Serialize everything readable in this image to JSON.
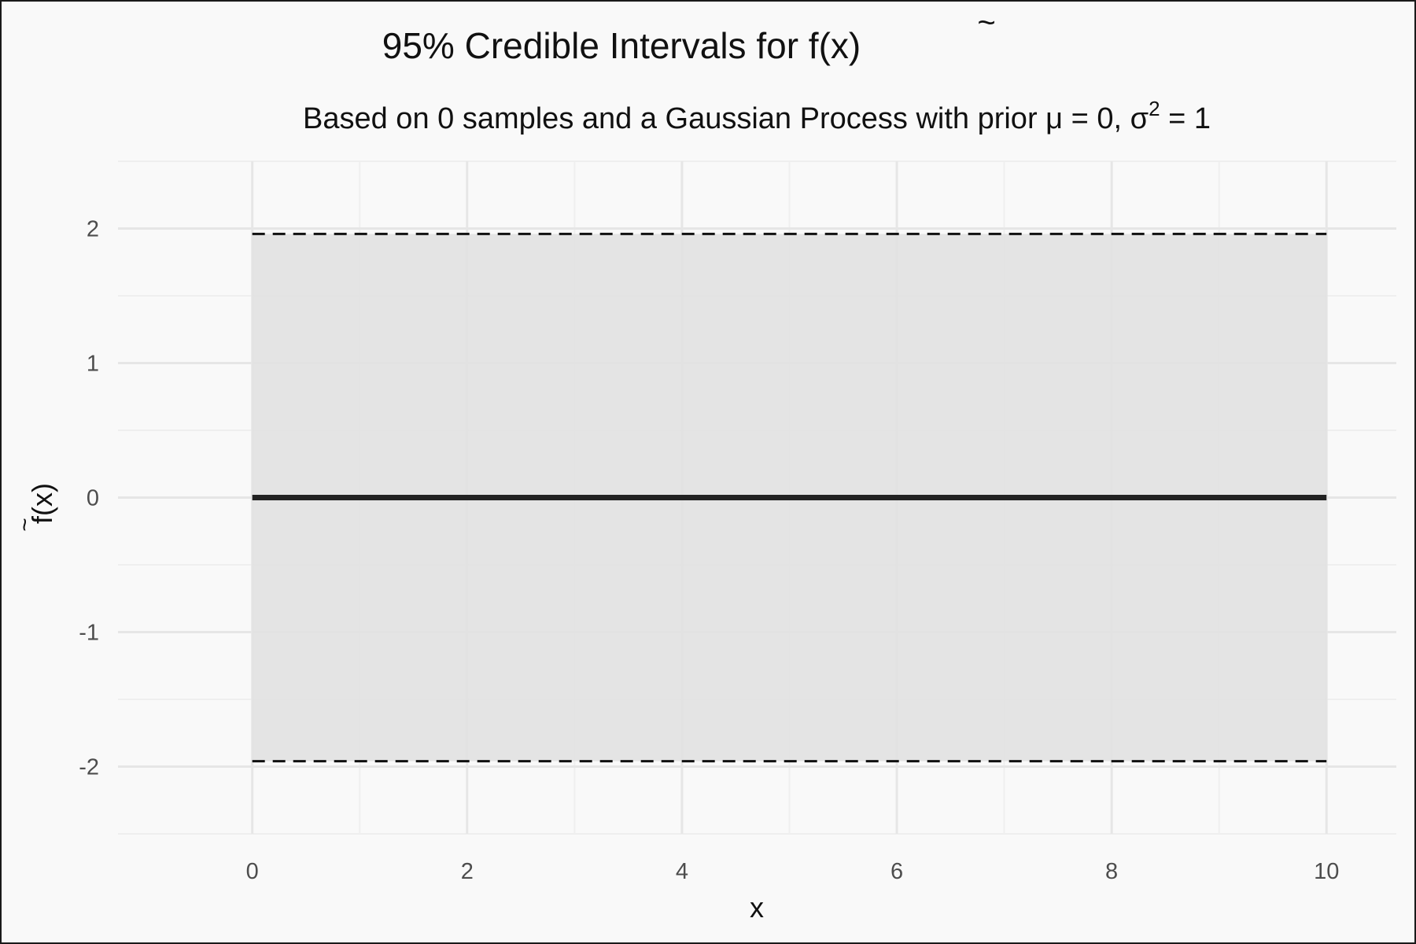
{
  "chart_data": {
    "type": "line",
    "title": "95% Credible Intervals for f̃(x)",
    "title_parts": {
      "prefix": "95% Credible Intervals for ",
      "fn": "f",
      "suffix": "(x)"
    },
    "subtitle": "Based on 0 samples and a Gaussian Process with prior μ = 0, σ² = 1",
    "subtitle_parts": {
      "main": "Based on 0 samples and a Gaussian Process with prior μ = 0, σ",
      "sup": "2",
      "tail": " = 1"
    },
    "xlabel": "x",
    "ylabel": "f̃(x)",
    "ylabel_parts": {
      "fn": "f",
      "suffix": "(x)"
    },
    "xlim": [
      -1.25,
      10.65
    ],
    "ylim": [
      -2.5,
      2.5
    ],
    "x_ticks": [
      0,
      2,
      4,
      6,
      8,
      10
    ],
    "x_tick_labels": [
      "0",
      "2",
      "4",
      "6",
      "8",
      "10"
    ],
    "y_ticks": [
      -2,
      -1,
      0,
      1,
      2
    ],
    "y_tick_labels": [
      "-2",
      "-1",
      "0",
      "1",
      "2"
    ],
    "grid": true,
    "series": [
      {
        "kind": "mean",
        "x": [
          0,
          10
        ],
        "y": [
          0,
          0
        ]
      },
      {
        "kind": "upper_bound",
        "x": [
          0,
          10
        ],
        "y": [
          1.96,
          1.96
        ]
      },
      {
        "kind": "lower_bound",
        "x": [
          0,
          10
        ],
        "y": [
          -1.96,
          -1.96
        ]
      }
    ],
    "band": {
      "x": [
        0,
        10
      ],
      "lower": [
        -1.96,
        -1.96
      ],
      "upper": [
        1.96,
        1.96
      ]
    },
    "colors": {
      "background": "#f9f9f9",
      "band": "#e0e0e0",
      "grid_major": "#e6e6e6",
      "grid_minor": "#efefef",
      "mean_line": "#222222",
      "bound_line": "#111111",
      "tick_text": "#4d4d4d"
    }
  }
}
